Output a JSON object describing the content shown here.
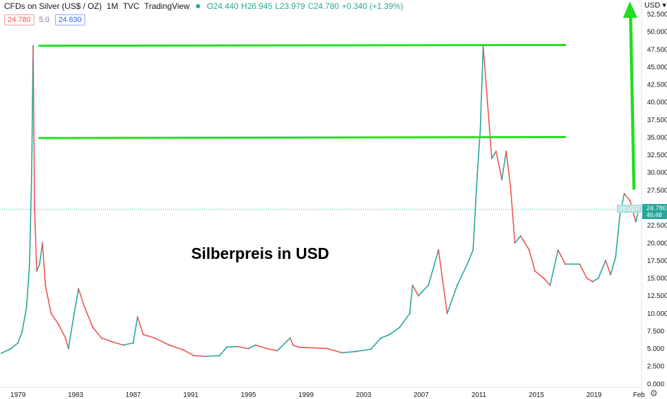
{
  "header": {
    "symbol": "CFDs on Silver (US$ / OZ)",
    "interval": "1M",
    "source": "TVC",
    "provider": "TradingView",
    "open": "O24.440",
    "high": "H26.945",
    "low": "L23.979",
    "close": "C24.780",
    "change": "+0.340 (+1.39%)"
  },
  "chips": {
    "bid": "24.780",
    "spread": "5.0",
    "ask": "24.830"
  },
  "currency_selector": "USD",
  "last_price_tag": {
    "label": "SILVER",
    "price": "24.780",
    "countdown": "46:48"
  },
  "colors": {
    "up": "#26a69a",
    "down": "#ef5350",
    "annotation": "#22dd22",
    "price_tag": "#26a69a"
  },
  "chart_data": {
    "type": "line",
    "title": "Silberpreis in USD",
    "x_tick_labels": [
      "1979",
      "1983",
      "1987",
      "1991",
      "1995",
      "1999",
      "2003",
      "2007",
      "2011",
      "2015",
      "2019",
      "Feb"
    ],
    "y_tick_labels": [
      "0.000",
      "2.500",
      "5.000",
      "7.500",
      "10.000",
      "12.500",
      "15.000",
      "17.500",
      "20.000",
      "22.500",
      "27.500",
      "30.000",
      "32.500",
      "35.000",
      "37.500",
      "40.000",
      "42.500",
      "45.000",
      "47.500",
      "50.000",
      "52.500"
    ],
    "ylim": [
      -0.5,
      54.5
    ],
    "xlim": [
      1977.75,
      2022.3
    ],
    "grid": false,
    "horizontal_levels": [
      48.0,
      35.0
    ],
    "series": [
      {
        "x": [
          1977.8,
          1978.5,
          1979.0,
          1979.3,
          1979.6,
          1979.8,
          1979.95,
          1980.05,
          1980.15,
          1980.3,
          1980.5,
          1980.7,
          1980.9,
          1981.3,
          1981.8,
          1982.3,
          1982.5,
          1982.9,
          1983.2,
          1983.6,
          1984.2,
          1984.8,
          1985.5,
          1986.3,
          1987.0,
          1987.3,
          1987.7,
          1988.5,
          1989.5,
          1990.5,
          1991.2,
          1992.0,
          1993.0,
          1993.5,
          1994.2,
          1995.0,
          1995.5,
          1996.3,
          1997.0,
          1997.9,
          1998.1,
          1998.5,
          1999.5,
          2000.5,
          2001.5,
          2002.5,
          2003.5,
          2004.2,
          2004.8,
          2005.5,
          2006.2,
          2006.4,
          2006.8,
          2007.5,
          2008.2,
          2008.8,
          2009.5,
          2010.2,
          2010.6,
          2010.9,
          2011.1,
          2011.3,
          2011.6,
          2011.9,
          2012.2,
          2012.6,
          2012.9,
          2013.2,
          2013.5,
          2013.9,
          2014.5,
          2014.9,
          2015.5,
          2015.95,
          2016.5,
          2017.0,
          2017.5,
          2018.0,
          2018.5,
          2018.9,
          2019.3,
          2019.8,
          2020.15,
          2020.5,
          2020.8,
          2021.1,
          2021.5,
          2021.9,
          2022.1
        ],
        "y": [
          4.3,
          5.0,
          5.8,
          7.5,
          11.0,
          17.0,
          30.0,
          48.0,
          25.0,
          16.0,
          17.0,
          20.0,
          14.0,
          10.0,
          8.5,
          6.5,
          5.0,
          10.0,
          13.5,
          11.0,
          8.0,
          6.5,
          6.0,
          5.5,
          5.8,
          9.5,
          7.0,
          6.5,
          5.5,
          4.8,
          4.0,
          3.9,
          4.0,
          5.2,
          5.3,
          5.0,
          5.5,
          5.0,
          4.7,
          6.5,
          5.5,
          5.2,
          5.1,
          5.0,
          4.4,
          4.6,
          4.9,
          6.5,
          7.0,
          8.0,
          10.0,
          14.0,
          12.5,
          14.0,
          19.0,
          10.0,
          14.0,
          17.0,
          19.0,
          30.0,
          36.0,
          48.0,
          40.0,
          32.0,
          33.0,
          29.0,
          33.0,
          28.0,
          20.0,
          21.0,
          19.0,
          16.0,
          15.0,
          14.0,
          19.0,
          17.0,
          17.0,
          17.0,
          15.0,
          14.5,
          15.0,
          17.5,
          15.5,
          18.0,
          24.0,
          27.0,
          26.0,
          23.0,
          24.78
        ]
      }
    ]
  }
}
